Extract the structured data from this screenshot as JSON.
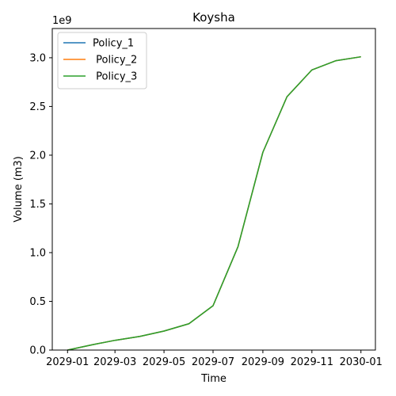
{
  "chart_data": {
    "type": "line",
    "title": "Koysha",
    "xlabel": "Time",
    "ylabel": "Volume (m3)",
    "y_offset_label": "1e9",
    "x": [
      "2029-01-01",
      "2029-02-01",
      "2029-03-01",
      "2029-04-01",
      "2029-05-01",
      "2029-06-01",
      "2029-07-01",
      "2029-08-01",
      "2029-09-01",
      "2029-10-01",
      "2029-11-01",
      "2029-12-01",
      "2030-01-01"
    ],
    "x_ticks": [
      "2029-01",
      "2029-03",
      "2029-05",
      "2029-07",
      "2029-09",
      "2029-11",
      "2030-01"
    ],
    "y_ticks": [
      "0.0",
      "0.5",
      "1.0",
      "1.5",
      "2.0",
      "2.5",
      "3.0"
    ],
    "y_tick_values": [
      0.0,
      0.5,
      1.0,
      1.5,
      2.0,
      2.5,
      3.0
    ],
    "xlim": [
      "2028-12-13",
      "2030-01-19"
    ],
    "ylim": [
      0,
      3.3
    ],
    "y_scale": 1000000000,
    "grid": false,
    "legend_position": "top-left",
    "series": [
      {
        "name": "Policy_1",
        "color": "#1f77b4",
        "values": [
          0.0,
          0.055,
          0.1,
          0.14,
          0.195,
          0.27,
          0.455,
          1.06,
          2.03,
          2.6,
          2.875,
          2.97,
          3.01
        ]
      },
      {
        "name": " Policy_2",
        "color": "#ff7f0e",
        "values": [
          0.0,
          0.055,
          0.1,
          0.14,
          0.195,
          0.27,
          0.455,
          1.06,
          2.03,
          2.6,
          2.875,
          2.97,
          3.01
        ]
      },
      {
        "name": " Policy_3",
        "color": "#2ca02c",
        "values": [
          0.0,
          0.055,
          0.1,
          0.14,
          0.195,
          0.27,
          0.455,
          1.06,
          2.03,
          2.6,
          2.875,
          2.97,
          3.01
        ]
      }
    ]
  }
}
